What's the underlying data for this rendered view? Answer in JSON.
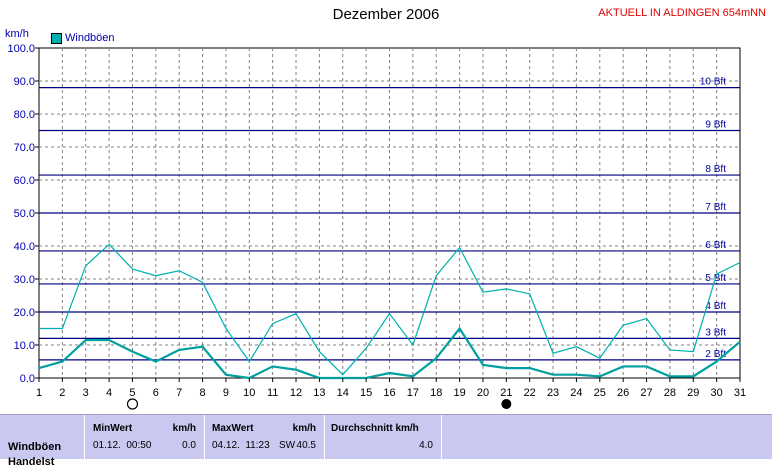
{
  "header": {
    "title": "Dezember 2006",
    "station": "AKTUELL IN ALDINGEN 654mNN",
    "unit": "km/h"
  },
  "chart_data": {
    "type": "line",
    "title": "Dezember 2006",
    "ylabel": "km/h",
    "ylim": [
      0,
      100
    ],
    "y_ticks": [
      "0.0",
      "10.0",
      "20.0",
      "30.0",
      "40.0",
      "50.0",
      "60.0",
      "70.0",
      "80.0",
      "90.0",
      "100.0"
    ],
    "x": [
      1,
      2,
      3,
      4,
      5,
      6,
      7,
      8,
      9,
      10,
      11,
      12,
      13,
      14,
      15,
      16,
      17,
      18,
      19,
      20,
      21,
      22,
      23,
      24,
      25,
      26,
      27,
      28,
      29,
      30,
      31
    ],
    "legend": "top-left",
    "series": [
      {
        "name": "Windböen",
        "color": "#00b0b0",
        "values": [
          15,
          15,
          34,
          40.5,
          33,
          31,
          32.5,
          29,
          15,
          5,
          16.5,
          19.5,
          8,
          1,
          9,
          19.5,
          10,
          31,
          39.5,
          26,
          27,
          25.5,
          7.5,
          9.5,
          6,
          16,
          18,
          8.5,
          8,
          31.5,
          35
        ]
      },
      {
        "color": "#00a0a0",
        "values": [
          3,
          5,
          11.5,
          11.5,
          8,
          5,
          8.5,
          9.5,
          1,
          0,
          3.5,
          2.5,
          0,
          0,
          0,
          1.5,
          0.5,
          6,
          15,
          4,
          3,
          3,
          1,
          1,
          0.5,
          3.5,
          3.5,
          0.5,
          0.5,
          5,
          11
        ]
      }
    ],
    "beaufort_lines": [
      {
        "label": "2 Bft",
        "value": 5.5
      },
      {
        "label": "3 Bft",
        "value": 12
      },
      {
        "label": "4 Bft",
        "value": 20
      },
      {
        "label": "5 Bft",
        "value": 28.5
      },
      {
        "label": "6 Bft",
        "value": 38.5
      },
      {
        "label": "7 Bft",
        "value": 50
      },
      {
        "label": "8 Bft",
        "value": 61.5
      },
      {
        "label": "9 Bft",
        "value": 75
      },
      {
        "label": "10 Bft",
        "value": 88
      }
    ],
    "moon_markers": [
      {
        "day": 5,
        "phase": "full-moon"
      },
      {
        "day": 21,
        "phase": "new-moon"
      }
    ]
  },
  "stats": {
    "row_label": "Windböen",
    "row_label_2": "Handelst",
    "min_header": "MinWert",
    "min_unit": "km/h",
    "min_time": "01.12.  00:50",
    "min_value": "0.0",
    "max_header": "MaxWert",
    "max_unit": "km/h",
    "max_time": "04.12.  11:23",
    "max_dir": "SW",
    "max_value": "40.5",
    "avg_header": "Durchschnitt km/h",
    "avg_value": "4.0"
  }
}
